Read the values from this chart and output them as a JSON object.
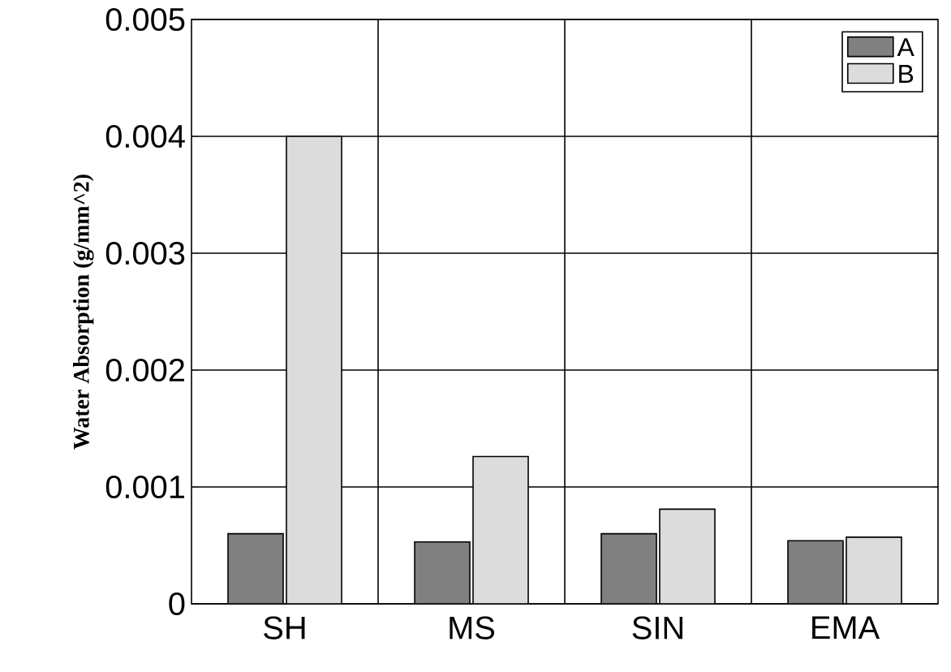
{
  "chart_data": {
    "type": "bar",
    "ylabel": "Water Absorption (g/mm^2)",
    "categories": [
      "SH",
      "MS",
      "SIN",
      "EMA"
    ],
    "series": [
      {
        "name": "A",
        "color": "#808080",
        "values": [
          0.0006,
          0.00053,
          0.0006,
          0.00054
        ]
      },
      {
        "name": "B",
        "color": "#dcdcdc",
        "values": [
          0.004,
          0.00126,
          0.00081,
          0.00057
        ]
      }
    ],
    "ylim": [
      0,
      0.005
    ],
    "yticks": [
      0,
      0.001,
      0.002,
      0.003,
      0.004,
      0.005
    ],
    "grid": true,
    "legend": "top right"
  }
}
